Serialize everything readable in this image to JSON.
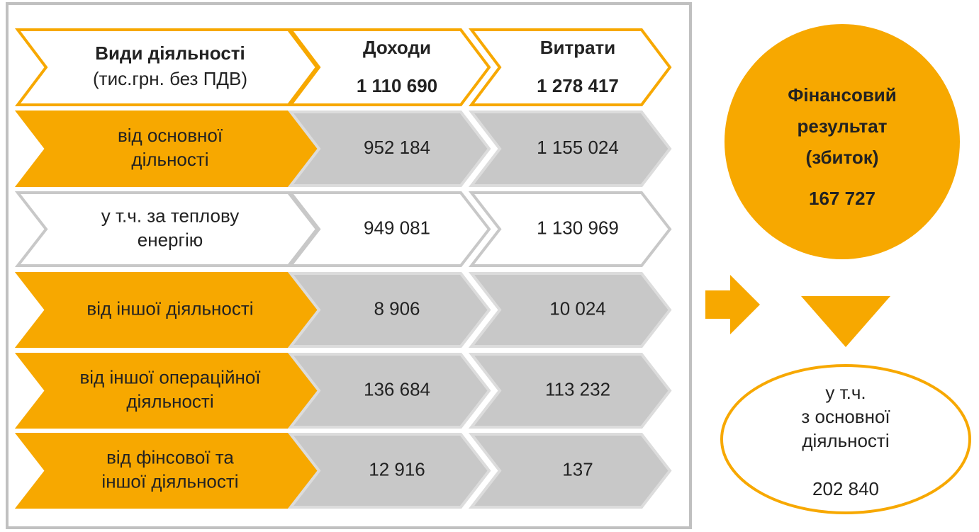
{
  "header": {
    "label": [
      "Види діяльності",
      "(тис.грн. без ПДВ)"
    ],
    "columns": [
      {
        "title": "Доходи",
        "total": "1 110 690"
      },
      {
        "title": "Витрати",
        "total": "1 278 417"
      }
    ]
  },
  "rows": [
    {
      "label": [
        "від основної",
        "дільності"
      ],
      "values": [
        "952 184",
        "1 155 024"
      ]
    },
    {
      "label": [
        "у т.ч. за теплову",
        "енергію"
      ],
      "values": [
        "949 081",
        "1 130 969"
      ]
    },
    {
      "label": [
        "від іншої діяльності"
      ],
      "values": [
        "8 906",
        "10 024"
      ]
    },
    {
      "label": [
        "від іншої операційної",
        "діяльності"
      ],
      "values": [
        "136 684",
        "113 232"
      ]
    },
    {
      "label": [
        "від фінсової та",
        "іншої діяльності"
      ],
      "values": [
        "12 916",
        "137"
      ]
    }
  ],
  "result": {
    "label": [
      "Фінансовий",
      "результат",
      "(збиток)"
    ],
    "value": "167 727"
  },
  "detail": {
    "label": [
      "у т.ч.",
      "з основної",
      "діяльності"
    ],
    "value": "202 840"
  }
}
